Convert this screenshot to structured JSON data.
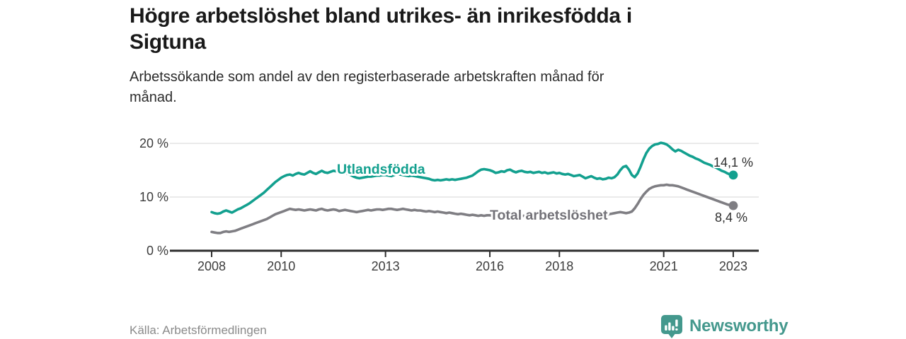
{
  "header": {
    "title": "Högre arbetslöshet bland utrikes- än inrikesfödda i\nSigtuna",
    "subtitle": "Arbetssökande som andel av den registerbaserade arbetskraften månad för\nmånad."
  },
  "footer": {
    "source": "Källa: Arbetsförmedlingen",
    "brand": "Newsworthy"
  },
  "colors": {
    "foreign_born_line": "#13a08f",
    "total_line": "#7f7e83",
    "total_label": "#737278",
    "axis": "#2f2f2f",
    "gridline": "#dedede",
    "logo": "#44988d"
  },
  "chart_data": {
    "type": "line",
    "title": "Högre arbetslöshet bland utrikes- än inrikesfödda i Sigtuna",
    "x_start_year": 2008,
    "points_per_year": 12,
    "x_ticks": [
      2008,
      2010,
      2013,
      2016,
      2018,
      2021,
      2023
    ],
    "y_ticks": [
      {
        "value": 0,
        "label": "0 %"
      },
      {
        "value": 10,
        "label": "10 %"
      },
      {
        "value": 20,
        "label": "20 %"
      }
    ],
    "ylim": [
      0,
      21.5
    ],
    "grid": "horizontal",
    "legend_position": "inline-labels",
    "series": [
      {
        "name": "Total arbetslöshet",
        "slug": "total-arbetsloshet",
        "color": "#7f7e83",
        "label_color": "#737278",
        "end_value": 8.4,
        "end_label": "8,4 %",
        "values": [
          3.5,
          3.4,
          3.3,
          3.3,
          3.5,
          3.6,
          3.5,
          3.6,
          3.7,
          3.9,
          4.1,
          4.3,
          4.5,
          4.7,
          4.9,
          5.1,
          5.3,
          5.5,
          5.7,
          5.9,
          6.2,
          6.5,
          6.8,
          7.0,
          7.2,
          7.4,
          7.6,
          7.8,
          7.7,
          7.6,
          7.7,
          7.6,
          7.5,
          7.6,
          7.7,
          7.6,
          7.5,
          7.7,
          7.8,
          7.6,
          7.5,
          7.6,
          7.7,
          7.6,
          7.4,
          7.5,
          7.6,
          7.5,
          7.4,
          7.3,
          7.2,
          7.3,
          7.4,
          7.5,
          7.6,
          7.5,
          7.6,
          7.7,
          7.7,
          7.6,
          7.7,
          7.8,
          7.8,
          7.7,
          7.6,
          7.7,
          7.8,
          7.7,
          7.6,
          7.5,
          7.6,
          7.5,
          7.5,
          7.4,
          7.3,
          7.4,
          7.3,
          7.2,
          7.3,
          7.2,
          7.1,
          7.0,
          7.1,
          7.0,
          6.9,
          6.8,
          6.9,
          6.8,
          6.7,
          6.6,
          6.7,
          6.6,
          6.5,
          6.6,
          6.5,
          6.6,
          6.6,
          6.5,
          6.4,
          6.5,
          6.4,
          6.3,
          6.4,
          6.5,
          6.4,
          6.5,
          6.6,
          6.5,
          6.5,
          6.6,
          6.5,
          6.6,
          6.7,
          6.6,
          6.7,
          6.8,
          6.7,
          6.8,
          6.9,
          6.8,
          6.8,
          6.7,
          6.8,
          6.7,
          6.6,
          6.7,
          6.6,
          6.7,
          6.6,
          6.5,
          6.6,
          6.5,
          6.5,
          6.6,
          6.5,
          6.6,
          6.7,
          6.8,
          6.9,
          7.0,
          7.1,
          7.2,
          7.1,
          7.0,
          7.1,
          7.3,
          7.9,
          8.7,
          9.6,
          10.4,
          11.0,
          11.5,
          11.8,
          12.0,
          12.1,
          12.2,
          12.2,
          12.3,
          12.2,
          12.2,
          12.1,
          12.0,
          11.8,
          11.6,
          11.4,
          11.2,
          11.0,
          10.8,
          10.6,
          10.4,
          10.2,
          10.0,
          9.8,
          9.6,
          9.4,
          9.2,
          9.0,
          8.8,
          8.6,
          8.5,
          8.4
        ]
      },
      {
        "name": "Utlandsfödda",
        "slug": "utlandsfodda",
        "color": "#13a08f",
        "label_color": "#13a08f",
        "end_value": 14.1,
        "end_label": "14,1 %",
        "values": [
          7.2,
          7.0,
          6.9,
          7.0,
          7.3,
          7.5,
          7.3,
          7.1,
          7.4,
          7.7,
          7.9,
          8.2,
          8.5,
          8.8,
          9.2,
          9.6,
          10.0,
          10.4,
          10.8,
          11.3,
          11.8,
          12.3,
          12.8,
          13.2,
          13.6,
          13.9,
          14.1,
          14.2,
          14.0,
          14.3,
          14.5,
          14.3,
          14.2,
          14.5,
          14.8,
          14.5,
          14.3,
          14.6,
          14.9,
          14.6,
          14.5,
          14.7,
          14.9,
          14.8,
          14.5,
          14.4,
          14.6,
          14.3,
          14.1,
          13.8,
          13.6,
          13.5,
          13.6,
          13.7,
          13.8,
          13.8,
          13.9,
          14.0,
          14.0,
          14.1,
          14.1,
          14.0,
          13.9,
          14.1,
          14.3,
          14.2,
          14.1,
          14.0,
          13.9,
          14.0,
          13.9,
          13.8,
          13.7,
          13.6,
          13.5,
          13.4,
          13.2,
          13.1,
          13.2,
          13.1,
          13.2,
          13.3,
          13.2,
          13.3,
          13.2,
          13.3,
          13.4,
          13.5,
          13.6,
          13.8,
          14.0,
          14.4,
          14.8,
          15.1,
          15.2,
          15.1,
          15.0,
          14.8,
          14.5,
          14.6,
          14.8,
          14.7,
          15.0,
          15.1,
          14.8,
          14.6,
          14.8,
          14.9,
          14.7,
          14.6,
          14.7,
          14.5,
          14.6,
          14.7,
          14.5,
          14.6,
          14.4,
          14.5,
          14.6,
          14.4,
          14.5,
          14.3,
          14.2,
          14.3,
          14.1,
          13.9,
          14.0,
          14.1,
          13.8,
          13.5,
          13.7,
          13.9,
          13.6,
          13.4,
          13.5,
          13.3,
          13.4,
          13.6,
          13.5,
          13.7,
          14.2,
          15.0,
          15.6,
          15.8,
          15.1,
          14.1,
          13.7,
          14.4,
          15.6,
          17.0,
          18.2,
          19.0,
          19.5,
          19.8,
          19.9,
          20.1,
          20.0,
          19.8,
          19.4,
          18.9,
          18.5,
          18.8,
          18.6,
          18.3,
          18.0,
          17.7,
          17.5,
          17.2,
          17.0,
          16.7,
          16.4,
          16.2,
          16.0,
          15.7,
          15.5,
          15.2,
          14.9,
          14.7,
          14.4,
          14.2,
          14.1
        ]
      }
    ]
  }
}
